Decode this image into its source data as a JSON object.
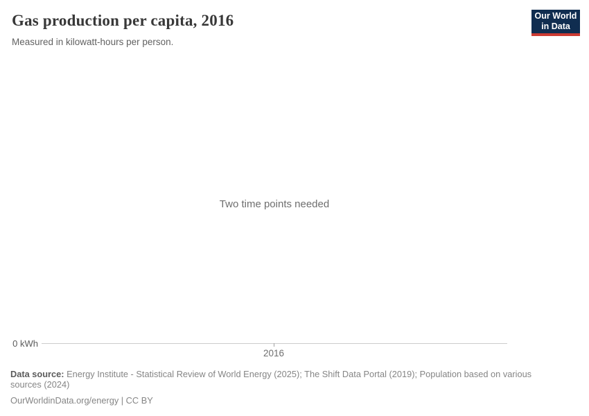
{
  "header": {
    "title": "Gas production per capita, 2016",
    "subtitle": "Measured in kilowatt-hours per person.",
    "logo": {
      "line1": "Our World",
      "line2": "in Data"
    }
  },
  "colors": {
    "logo_background": "#102d50",
    "logo_accent_red": "#cc3b33",
    "axis_line": "#cccccc",
    "title_text": "#383838",
    "muted_text": "#858585"
  },
  "chart": {
    "empty_message": "Two time points needed",
    "y_axis_tick": "0 kWh",
    "x_axis_tick": "2016"
  },
  "chart_data": {
    "type": "line",
    "title": "Gas production per capita, 2016",
    "subtitle": "Measured in kilowatt-hours per person.",
    "xlabel": "",
    "ylabel": "kilowatt-hours per person",
    "x_ticks": [
      "2016"
    ],
    "y_ticks": [
      "0 kWh"
    ],
    "ylim_bottom_label": "0 kWh",
    "series": [],
    "annotations": [
      "Two time points needed"
    ],
    "grid": false,
    "legend": false
  },
  "footer": {
    "data_source_label": "Data source:",
    "data_source_text": " Energy Institute - Statistical Review of World Energy (2025); The Shift Data Portal (2019); Population based on various sources (2024)",
    "link_line": "OurWorldinData.org/energy | CC BY"
  }
}
